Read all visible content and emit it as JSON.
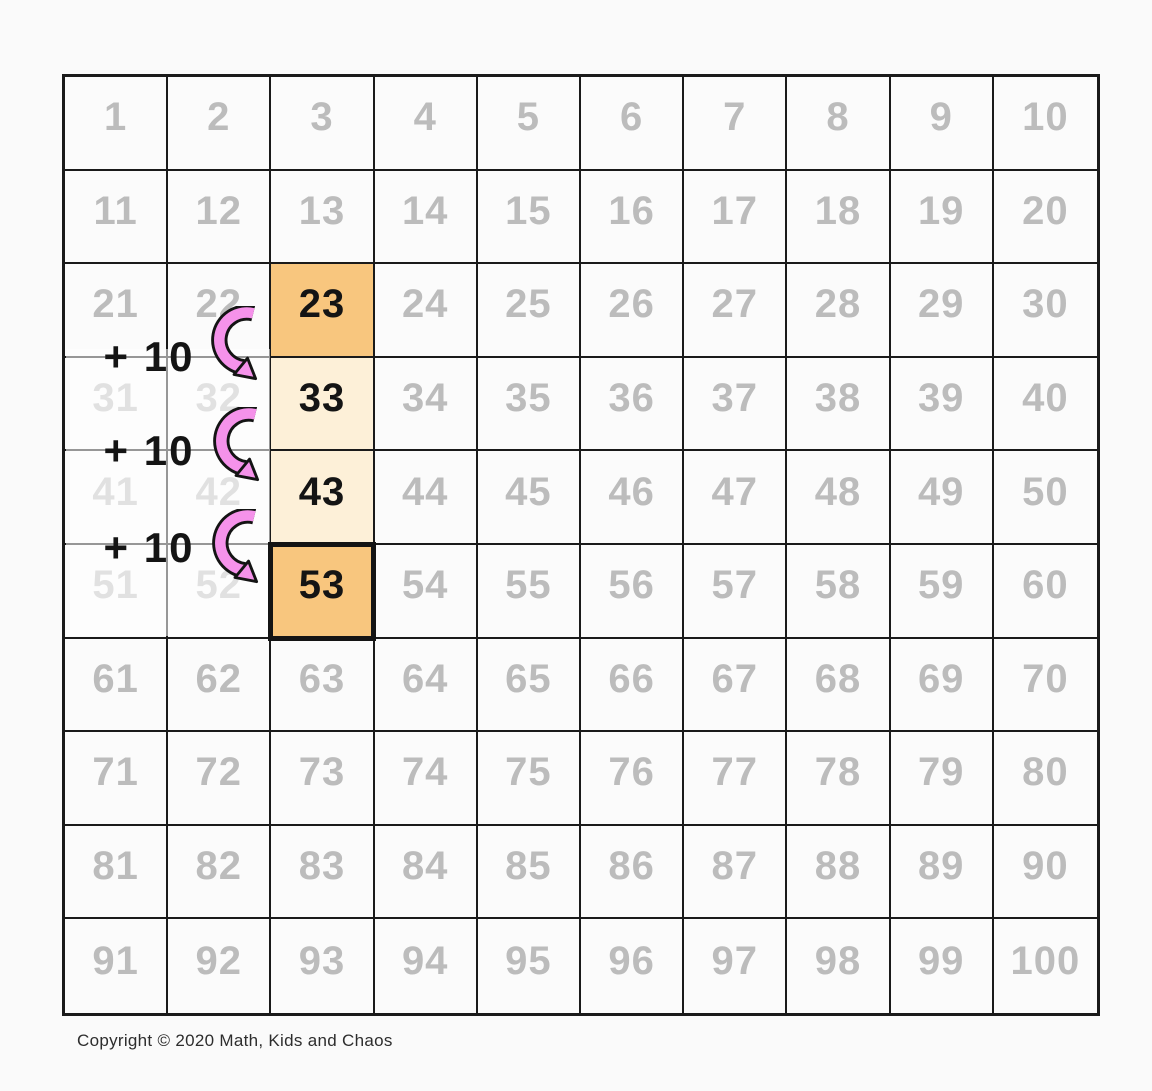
{
  "grid": {
    "rows": 10,
    "cols": 10,
    "numbers": [
      1,
      2,
      3,
      4,
      5,
      6,
      7,
      8,
      9,
      10,
      11,
      12,
      13,
      14,
      15,
      16,
      17,
      18,
      19,
      20,
      21,
      22,
      23,
      24,
      25,
      26,
      27,
      28,
      29,
      30,
      31,
      32,
      33,
      34,
      35,
      36,
      37,
      38,
      39,
      40,
      41,
      42,
      43,
      44,
      45,
      46,
      47,
      48,
      49,
      50,
      51,
      52,
      53,
      54,
      55,
      56,
      57,
      58,
      59,
      60,
      61,
      62,
      63,
      64,
      65,
      66,
      67,
      68,
      69,
      70,
      71,
      72,
      73,
      74,
      75,
      76,
      77,
      78,
      79,
      80,
      81,
      82,
      83,
      84,
      85,
      86,
      87,
      88,
      89,
      90,
      91,
      92,
      93,
      94,
      95,
      96,
      97,
      98,
      99,
      100
    ],
    "highlights": [
      {
        "value": "23",
        "fill": "orange",
        "thick_border": false
      },
      {
        "value": "33",
        "fill": "cream",
        "thick_border": false
      },
      {
        "value": "43",
        "fill": "cream",
        "thick_border": false
      },
      {
        "value": "53",
        "fill": "orange",
        "thick_border": true
      }
    ],
    "faded_numbers": [
      31,
      32,
      41,
      42,
      51,
      52
    ]
  },
  "annotations": {
    "plus_ten_labels": [
      "+ 10",
      "+ 10",
      "+ 10"
    ],
    "arrow_icons": [
      "curved-arrow",
      "curved-arrow",
      "curved-arrow"
    ]
  },
  "footer": {
    "copyright": "Copyright © 2020 Math, Kids and Chaos"
  },
  "colors": {
    "page_bg": "#fafafa",
    "grid_line": "#1a1a1a",
    "number_gray": "#bcbcbc",
    "text_black": "#141414",
    "highlight_orange": "#f8c67e",
    "highlight_cream": "#fdf0d8",
    "arrow_pink": "#f592ea",
    "fade_overlay": "rgba(255,255,255,0.55)"
  }
}
